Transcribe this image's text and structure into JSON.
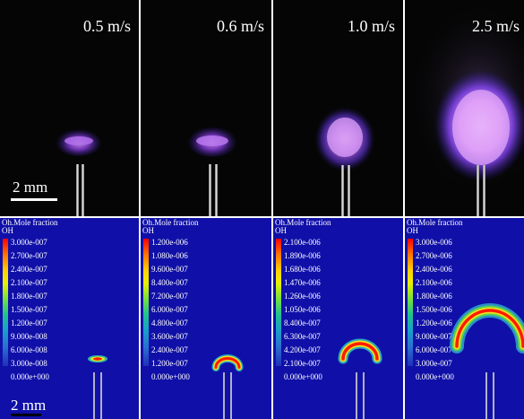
{
  "photos": [
    {
      "speed": "0.5 m/s"
    },
    {
      "speed": "0.6 m/s"
    },
    {
      "speed": "1.0 m/s"
    },
    {
      "speed": "2.5 m/s"
    }
  ],
  "photo_scale_bar": "2 mm",
  "sim_scale_bar": "2 mm",
  "simulations": [
    {
      "title": "Oh.Mole fraction",
      "var": "OH",
      "levels": [
        "3.000e-007",
        "2.700e-007",
        "2.400e-007",
        "2.100e-007",
        "1.800e-007",
        "1.500e-007",
        "1.200e-007",
        "9.000e-008",
        "6.000e-008",
        "3.000e-008",
        "0.000e+000"
      ]
    },
    {
      "title": "Oh.Mole fraction",
      "var": "OH",
      "levels": [
        "1.200e-006",
        "1.080e-006",
        "9.600e-007",
        "8.400e-007",
        "7.200e-007",
        "6.000e-007",
        "4.800e-007",
        "3.600e-007",
        "2.400e-007",
        "1.200e-007",
        "0.000e+000"
      ]
    },
    {
      "title": "Oh.Mole fraction",
      "var": "OH",
      "levels": [
        "2.100e-006",
        "1.890e-006",
        "1.680e-006",
        "1.470e-006",
        "1.260e-006",
        "1.050e-006",
        "8.400e-007",
        "6.300e-007",
        "4.200e-007",
        "2.100e-007",
        "0.000e+000"
      ]
    },
    {
      "title": "Oh.Mole fraction",
      "var": "OH",
      "levels": [
        "3.000e-006",
        "2.700e-006",
        "2.400e-006",
        "2.100e-006",
        "1.800e-006",
        "1.500e-006",
        "1.200e-006",
        "9.000e-007",
        "6.000e-007",
        "3.000e-007",
        "0.000e+000"
      ]
    }
  ],
  "colors": {
    "photo_bg": "#050505",
    "sim_bg": "#1010a8",
    "flame_core": "#c27ae6",
    "flame_glow": "#5a2fc0",
    "legend_scale": [
      "#ff0000",
      "#ff6a00",
      "#ffb400",
      "#ffee00",
      "#b8f000",
      "#4cd34a",
      "#20c090",
      "#1c9fc6",
      "#2878d0",
      "#2c48c0",
      "#1a1ab0"
    ]
  }
}
